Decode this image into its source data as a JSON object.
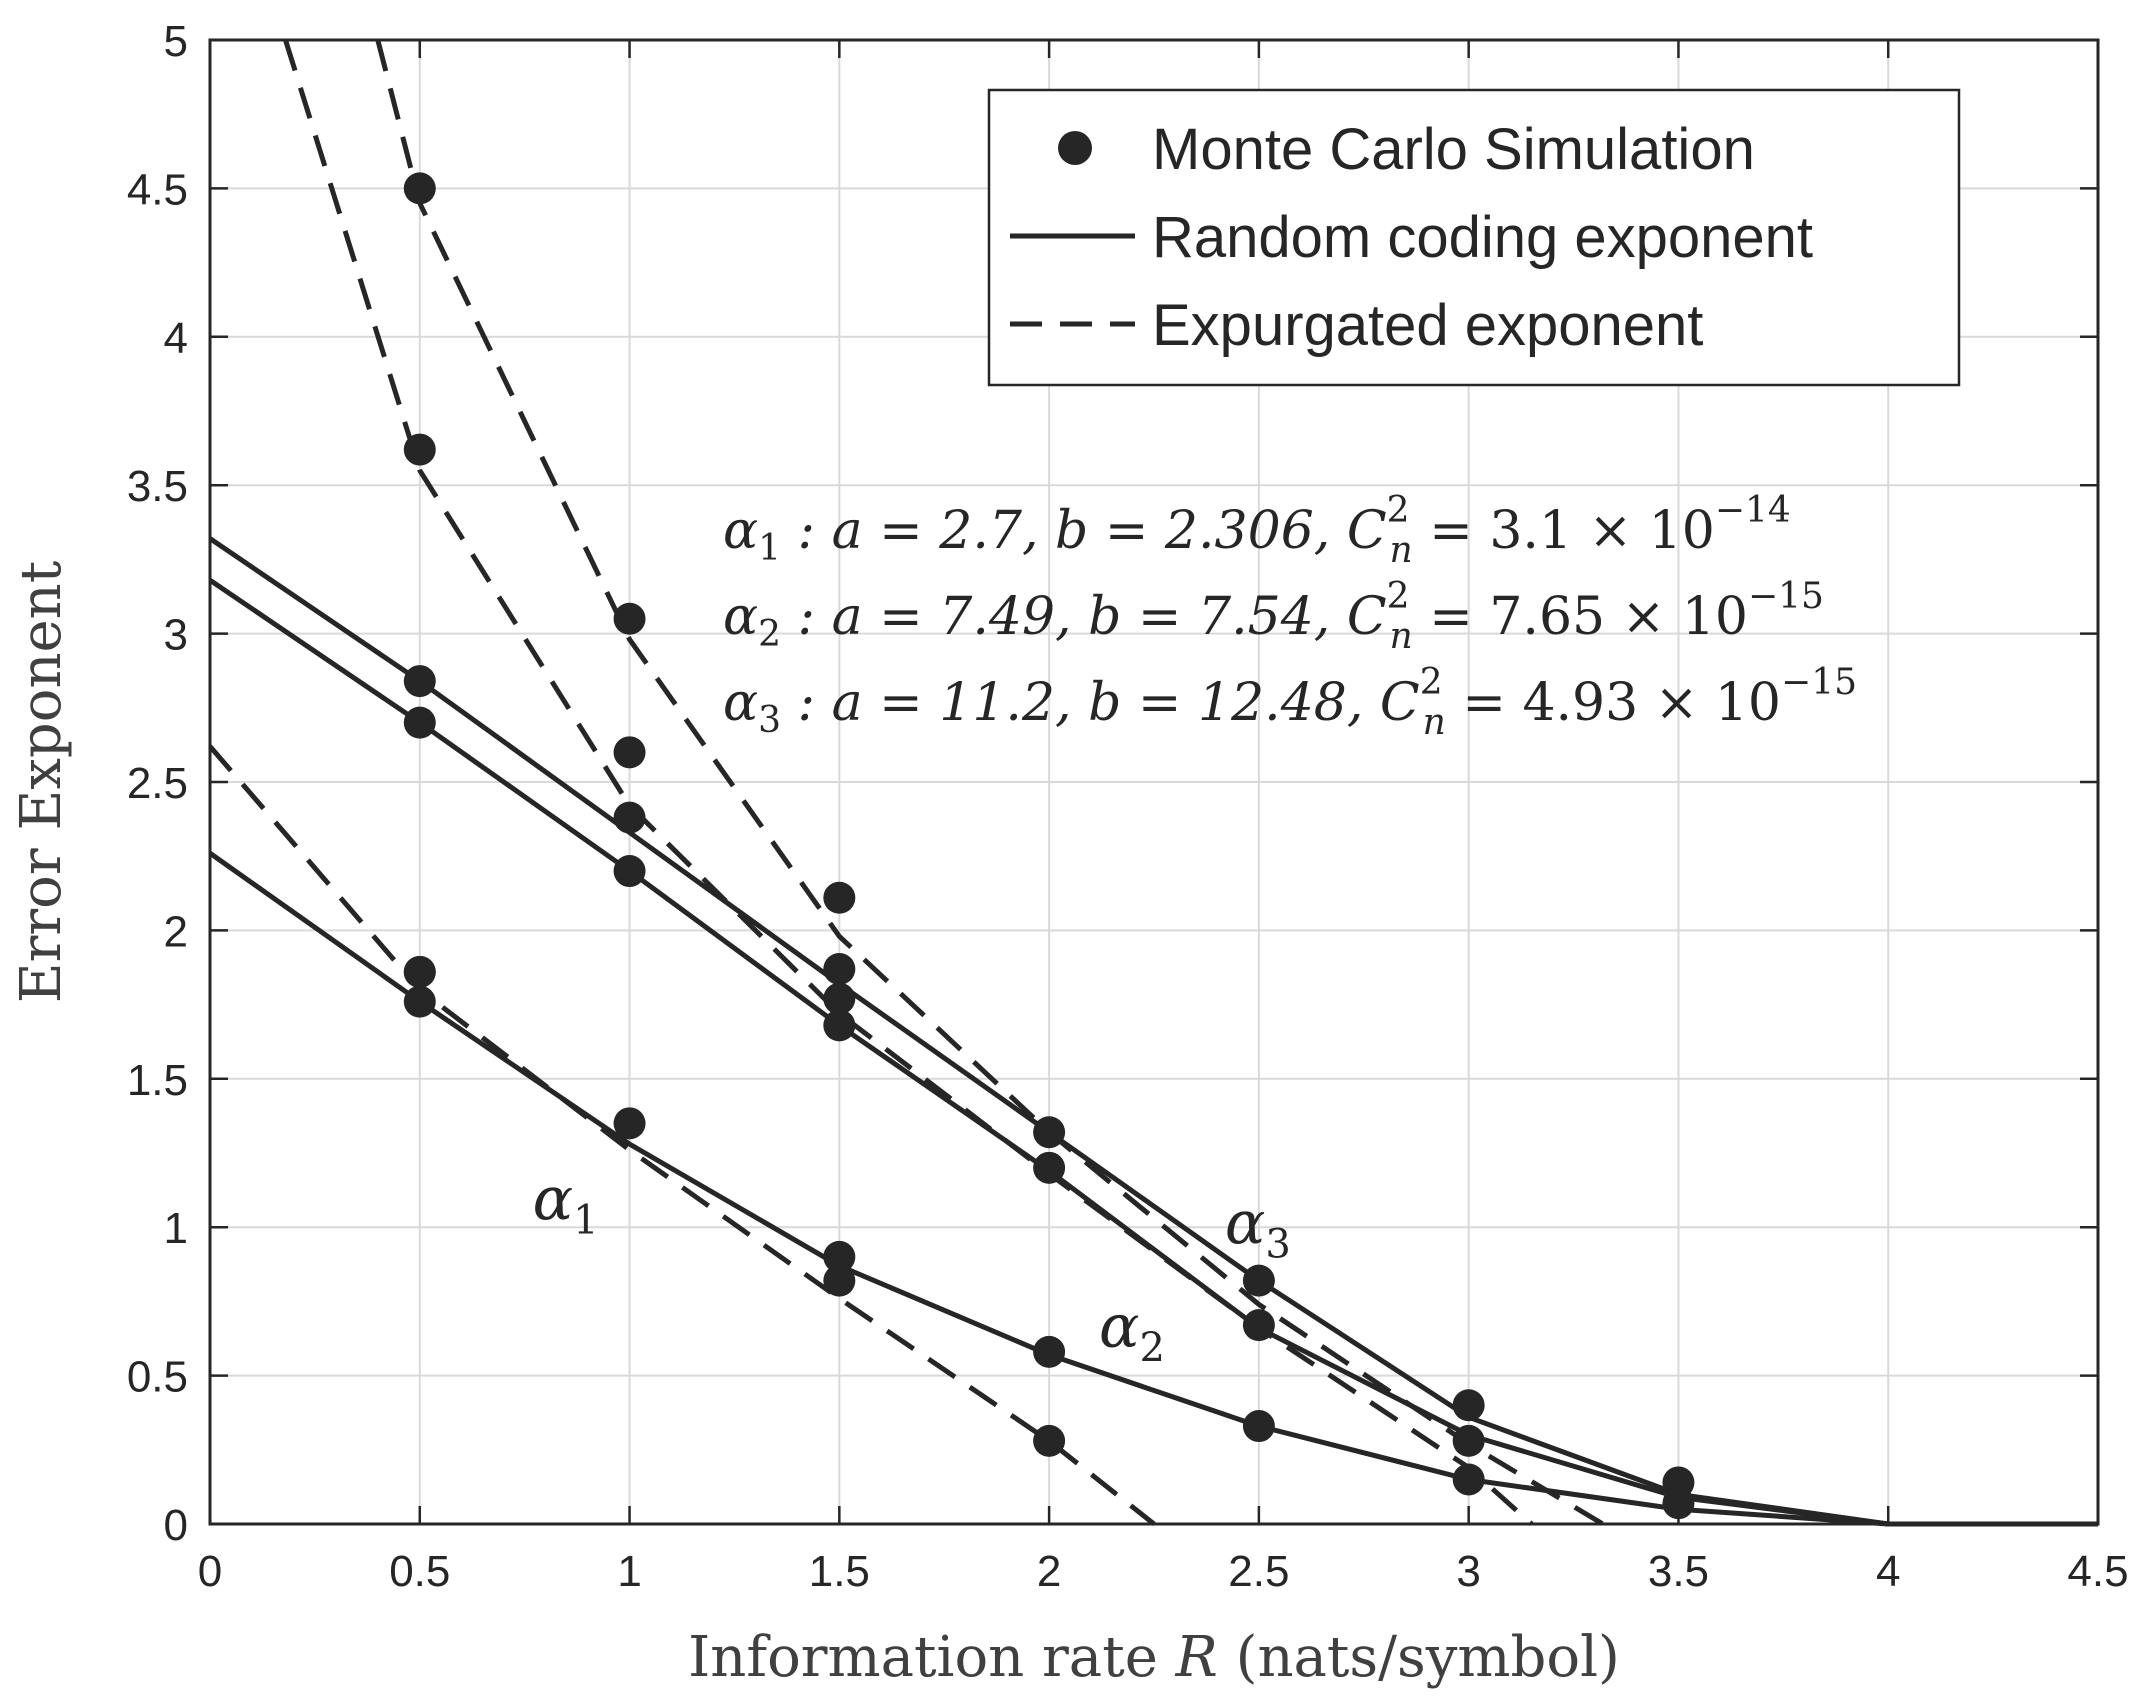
{
  "chart_data": {
    "type": "line",
    "xlabel": "Information rate R (nats/symbol)",
    "xlabel_parts": {
      "before": "Information rate ",
      "var": "R",
      "after": " (nats/symbol)"
    },
    "ylabel": "Error Exponent",
    "xlim": [
      0,
      4.5
    ],
    "ylim": [
      0,
      5
    ],
    "grid": true,
    "legend_position": "top-right",
    "xticks": [
      "0",
      "0.5",
      "1",
      "1.5",
      "2",
      "2.5",
      "3",
      "3.5",
      "4",
      "4.5"
    ],
    "yticks": [
      "0",
      "0.5",
      "1",
      "1.5",
      "2",
      "2.5",
      "3",
      "3.5",
      "4",
      "4.5",
      "5"
    ],
    "legend": [
      {
        "label": "Monte Carlo Simulation",
        "style": "marker"
      },
      {
        "label": "Random coding exponent",
        "style": "solid"
      },
      {
        "label": "Expurgated exponent",
        "style": "dashed"
      }
    ],
    "annotations": [
      {
        "sym": "α",
        "sub": "1",
        "text": " : a = 2.7, b = 2.306, C",
        "supsub": {
          "sup": "2",
          "sub": "n"
        },
        "tail": " = 3.1 × 10",
        "exp": "−14"
      },
      {
        "sym": "α",
        "sub": "2",
        "text": " : a = 7.49, b = 7.54, C",
        "supsub": {
          "sup": "2",
          "sub": "n"
        },
        "tail": " = 7.65 × 10",
        "exp": "−15"
      },
      {
        "sym": "α",
        "sub": "3",
        "text": " : a = 11.2, b = 12.48, C",
        "supsub": {
          "sup": "2",
          "sub": "n"
        },
        "tail": " = 4.93 × 10",
        "exp": "−15"
      }
    ],
    "curve_labels": [
      {
        "sym": "α",
        "sub": "1",
        "at": [
          0.85,
          1.1
        ]
      },
      {
        "sym": "α",
        "sub": "2",
        "at": [
          2.2,
          0.67
        ]
      },
      {
        "sym": "α",
        "sub": "3",
        "at": [
          2.5,
          1.02
        ]
      }
    ],
    "color": "#262626",
    "grid_color": "#d9d9d9",
    "series": [
      {
        "group": "α1",
        "kind": "random_coding",
        "style": "solid",
        "x": [
          0,
          0.5,
          1,
          1.5,
          2,
          2.5,
          3,
          3.5,
          4,
          4.5
        ],
        "y": [
          2.26,
          1.76,
          1.28,
          0.87,
          0.57,
          0.33,
          0.15,
          0.05,
          0.0,
          0.0
        ]
      },
      {
        "group": "α2",
        "kind": "random_coding",
        "style": "solid",
        "x": [
          0,
          0.5,
          1,
          1.5,
          2,
          2.5,
          3,
          3.5,
          4,
          4.5
        ],
        "y": [
          3.18,
          2.7,
          2.2,
          1.68,
          1.19,
          0.66,
          0.3,
          0.09,
          0.0,
          0.0
        ]
      },
      {
        "group": "α3",
        "kind": "random_coding",
        "style": "solid",
        "x": [
          0,
          0.5,
          1,
          1.5,
          2,
          2.5,
          3,
          3.5,
          4,
          4.5
        ],
        "y": [
          3.32,
          2.84,
          2.33,
          1.82,
          1.32,
          0.82,
          0.36,
          0.1,
          0.0,
          0.0
        ]
      },
      {
        "group": "α1",
        "kind": "expurgated",
        "style": "dashed",
        "x": [
          0,
          0.5,
          1,
          1.5,
          2,
          2.25
        ],
        "y": [
          2.62,
          1.8,
          1.26,
          0.76,
          0.28,
          0.0
        ]
      },
      {
        "group": "α2",
        "kind": "expurgated",
        "style": "dashed",
        "x": [
          0.18,
          0.5,
          1,
          1.5,
          2,
          2.5,
          3,
          3.15
        ],
        "y": [
          5.0,
          3.55,
          2.42,
          1.72,
          1.18,
          0.66,
          0.19,
          0.0
        ]
      },
      {
        "group": "α3",
        "kind": "expurgated",
        "style": "dashed",
        "x": [
          0.4,
          0.5,
          1,
          1.5,
          2,
          2.5,
          3,
          3.32
        ],
        "y": [
          5.0,
          4.45,
          2.98,
          1.98,
          1.32,
          0.74,
          0.27,
          0.0
        ]
      },
      {
        "group": "all",
        "kind": "monte_carlo",
        "style": "marker",
        "x": [
          0.5,
          0.5,
          0.5,
          0.5,
          0.5,
          0.5,
          1,
          1,
          1,
          1,
          1.5,
          1.5,
          1.5,
          1.5,
          1.5,
          2,
          2,
          2,
          2,
          2.5,
          2.5,
          2.5,
          3,
          3,
          3,
          3.5,
          3.5
        ],
        "y": [
          4.5,
          3.62,
          2.84,
          2.7,
          1.86,
          1.76,
          3.05,
          2.6,
          2.38,
          2.2,
          2.11,
          1.87,
          1.77,
          1.68,
          0.9,
          1.32,
          1.2,
          0.58,
          0.28,
          0.82,
          0.67,
          0.33,
          0.4,
          0.28,
          0.15,
          0.14,
          0.07
        ]
      },
      {
        "group": "α1",
        "kind": "monte_carlo",
        "style": "marker",
        "x": [
          0.5,
          1,
          1.5
        ],
        "y": [
          1.86,
          1.35,
          0.82
        ]
      }
    ]
  }
}
